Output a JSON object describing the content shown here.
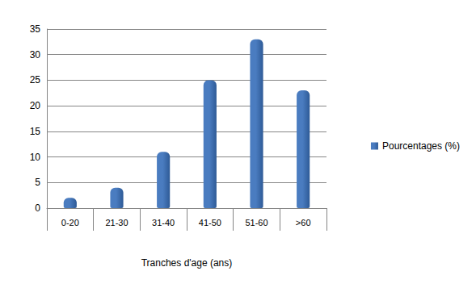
{
  "chart_data": {
    "type": "bar",
    "categories": [
      "0-20",
      "21-30",
      "31-40",
      "41-50",
      "51-60",
      ">60"
    ],
    "series": [
      {
        "name": "Pourcentages (%)",
        "color": "#4a7cc0",
        "values": [
          2,
          4,
          11,
          25,
          33,
          23
        ]
      }
    ],
    "xlabel": "Tranches d'age (ans)",
    "ylim": [
      0,
      35
    ],
    "yticks": [
      0,
      5,
      10,
      15,
      20,
      25,
      30,
      35
    ],
    "grid": true,
    "legend": "right"
  }
}
